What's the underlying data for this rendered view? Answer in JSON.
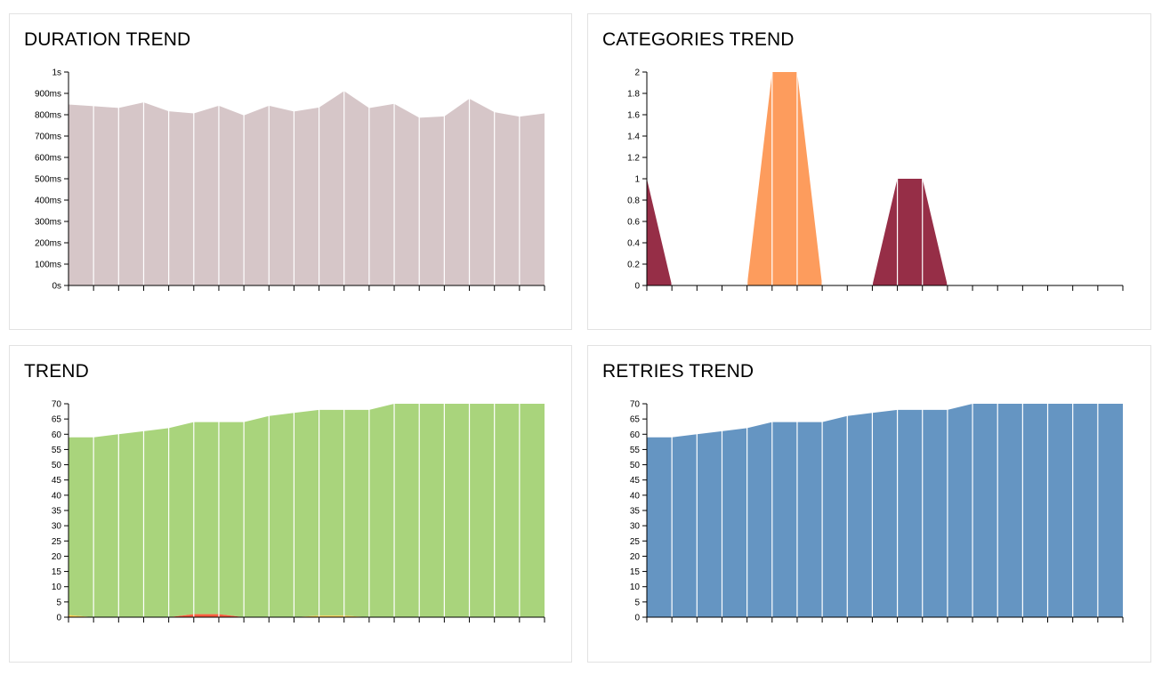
{
  "chart_data": [
    {
      "type": "area",
      "title": "DURATION TREND",
      "ylim": [
        0,
        1000
      ],
      "yticks": [
        0,
        100,
        200,
        300,
        400,
        500,
        600,
        700,
        800,
        900,
        1000
      ],
      "ytick_labels": [
        "0s",
        "100ms",
        "200ms",
        "300ms",
        "400ms",
        "500ms",
        "600ms",
        "700ms",
        "800ms",
        "900ms",
        "1s"
      ],
      "x_count": 20,
      "color": "#d6c6c8",
      "series": [
        {
          "values": [
            848,
            840,
            832,
            858,
            816,
            806,
            842,
            797,
            842,
            815,
            834,
            911,
            831,
            851,
            786,
            792,
            875,
            812,
            791,
            806
          ]
        }
      ]
    },
    {
      "type": "area",
      "title": "CATEGORIES TREND",
      "ylim": [
        0,
        2
      ],
      "yticks": [
        0,
        0.2,
        0.4,
        0.6,
        0.8,
        1,
        1.2,
        1.4,
        1.6,
        1.8,
        2
      ],
      "ytick_labels": [
        "0",
        "0.2",
        "0.4",
        "0.6",
        "0.8",
        "1",
        "1.2",
        "1.4",
        "1.6",
        "1.8",
        "2"
      ],
      "x_count": 20,
      "series": [
        {
          "color": "#fd9c5d",
          "values": [
            0,
            0,
            0,
            0,
            0,
            2,
            2,
            0,
            0,
            0,
            0,
            0,
            0,
            0,
            0,
            0,
            0,
            0,
            0,
            0
          ]
        },
        {
          "color": "#962e47",
          "values": [
            1,
            0,
            0,
            0,
            0,
            0,
            0,
            0,
            0,
            0,
            1,
            1,
            0,
            0,
            0,
            0,
            0,
            0,
            0,
            0
          ]
        }
      ]
    },
    {
      "type": "area",
      "title": "TREND",
      "ylim": [
        0,
        70
      ],
      "yticks": [
        0,
        5,
        10,
        15,
        20,
        25,
        30,
        35,
        40,
        45,
        50,
        55,
        60,
        65,
        70
      ],
      "ytick_labels": [
        "0",
        "5",
        "10",
        "15",
        "20",
        "25",
        "30",
        "35",
        "40",
        "45",
        "50",
        "55",
        "60",
        "65",
        "70"
      ],
      "x_count": 20,
      "stacked": true,
      "series": [
        {
          "color": "#fd5a3e",
          "values": [
            0,
            0,
            0,
            0,
            0,
            1,
            1,
            0,
            0,
            0,
            0,
            0,
            0,
            0,
            0,
            0,
            0,
            0,
            0,
            0
          ]
        },
        {
          "color": "#ffd050",
          "values": [
            0.7,
            0,
            0,
            0,
            0,
            0,
            0,
            0,
            0,
            0,
            0.5,
            0.5,
            0,
            0,
            0,
            0,
            0,
            0,
            0,
            0
          ]
        },
        {
          "color": "#a9d47c",
          "values": [
            58.3,
            59,
            60,
            61,
            62,
            63,
            63,
            64,
            66,
            67,
            67.5,
            67.5,
            68,
            70,
            70,
            70,
            70,
            70,
            70,
            70
          ]
        }
      ]
    },
    {
      "type": "area",
      "title": "RETRIES TREND",
      "ylim": [
        0,
        70
      ],
      "yticks": [
        0,
        5,
        10,
        15,
        20,
        25,
        30,
        35,
        40,
        45,
        50,
        55,
        60,
        65,
        70
      ],
      "ytick_labels": [
        "0",
        "5",
        "10",
        "15",
        "20",
        "25",
        "30",
        "35",
        "40",
        "45",
        "50",
        "55",
        "60",
        "65",
        "70"
      ],
      "x_count": 20,
      "color": "#6595c2",
      "series": [
        {
          "values": [
            59,
            59,
            60,
            61,
            62,
            64,
            64,
            64,
            66,
            67,
            68,
            68,
            68,
            70,
            70,
            70,
            70,
            70,
            70,
            70
          ]
        }
      ]
    }
  ]
}
